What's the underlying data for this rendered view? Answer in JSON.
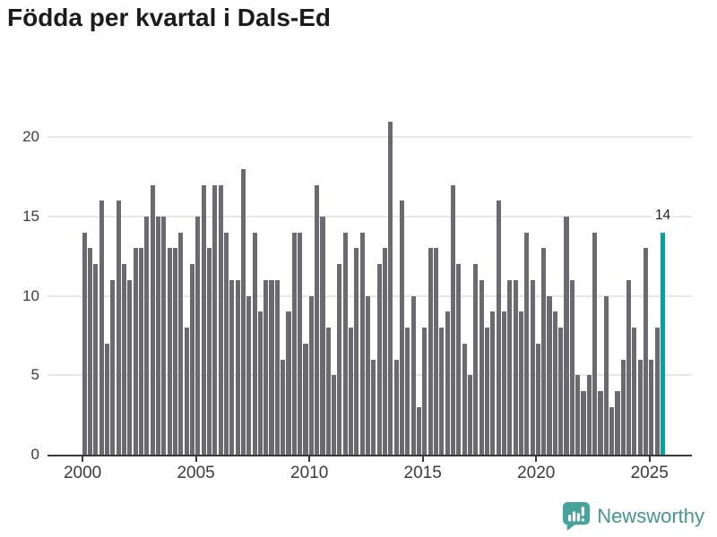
{
  "title": "Födda per kvartal i Dals-Ed",
  "annotation_label": "14",
  "logo_text": "Newsworthy",
  "colors": {
    "bar": "#6b6b6f",
    "highlight": "#089f9f",
    "gridline": "#e7e7e7",
    "axis_line": "#3a3a3a",
    "axis_text": "#3b3b3b",
    "title_text": "#1b1b1b",
    "logo_teal": "#459690",
    "logo_icon_teal": "#48a39c"
  },
  "chart_data": {
    "type": "bar",
    "title": "Födda per kvartal i Dals-Ed",
    "xlabel": "",
    "ylabel": "",
    "x_tick_labels": [
      "2000",
      "2005",
      "2010",
      "2015",
      "2020",
      "2025"
    ],
    "y_ticks": [
      0,
      5,
      10,
      15,
      20
    ],
    "ylim": [
      0,
      21
    ],
    "grid": true,
    "legend": "none",
    "first_period": "2000 Q1",
    "last_period": "2025 Q3",
    "highlight": {
      "period": "2025 Q3",
      "value": 14,
      "label": "14"
    },
    "data_by_year": [
      {
        "year": 2000,
        "q": [
          14,
          13,
          12,
          16
        ]
      },
      {
        "year": 2001,
        "q": [
          7,
          11,
          16,
          12
        ]
      },
      {
        "year": 2002,
        "q": [
          11,
          13,
          13,
          15
        ]
      },
      {
        "year": 2003,
        "q": [
          17,
          15,
          15,
          13
        ]
      },
      {
        "year": 2004,
        "q": [
          13,
          14,
          8,
          12
        ]
      },
      {
        "year": 2005,
        "q": [
          15,
          17,
          13,
          17
        ]
      },
      {
        "year": 2006,
        "q": [
          17,
          14,
          11,
          11
        ]
      },
      {
        "year": 2007,
        "q": [
          18,
          10,
          14,
          9
        ]
      },
      {
        "year": 2008,
        "q": [
          11,
          11,
          11,
          6
        ]
      },
      {
        "year": 2009,
        "q": [
          9,
          14,
          14,
          7
        ]
      },
      {
        "year": 2010,
        "q": [
          10,
          17,
          15,
          8
        ]
      },
      {
        "year": 2011,
        "q": [
          5,
          12,
          14,
          8
        ]
      },
      {
        "year": 2012,
        "q": [
          13,
          14,
          10,
          6
        ]
      },
      {
        "year": 2013,
        "q": [
          12,
          13,
          21,
          6
        ]
      },
      {
        "year": 2014,
        "q": [
          16,
          8,
          10,
          3
        ]
      },
      {
        "year": 2015,
        "q": [
          8,
          13,
          13,
          8
        ]
      },
      {
        "year": 2016,
        "q": [
          9,
          17,
          12,
          7
        ]
      },
      {
        "year": 2017,
        "q": [
          5,
          12,
          11,
          8
        ]
      },
      {
        "year": 2018,
        "q": [
          9,
          16,
          9,
          11
        ]
      },
      {
        "year": 2019,
        "q": [
          11,
          9,
          14,
          11
        ]
      },
      {
        "year": 2020,
        "q": [
          7,
          13,
          10,
          9
        ]
      },
      {
        "year": 2021,
        "q": [
          8,
          15,
          11,
          5
        ]
      },
      {
        "year": 2022,
        "q": [
          4,
          5,
          14,
          4
        ]
      },
      {
        "year": 2023,
        "q": [
          10,
          3,
          4,
          6
        ]
      },
      {
        "year": 2024,
        "q": [
          11,
          8,
          6,
          13
        ]
      },
      {
        "year": 2025,
        "q": [
          6,
          8,
          14
        ]
      }
    ]
  }
}
